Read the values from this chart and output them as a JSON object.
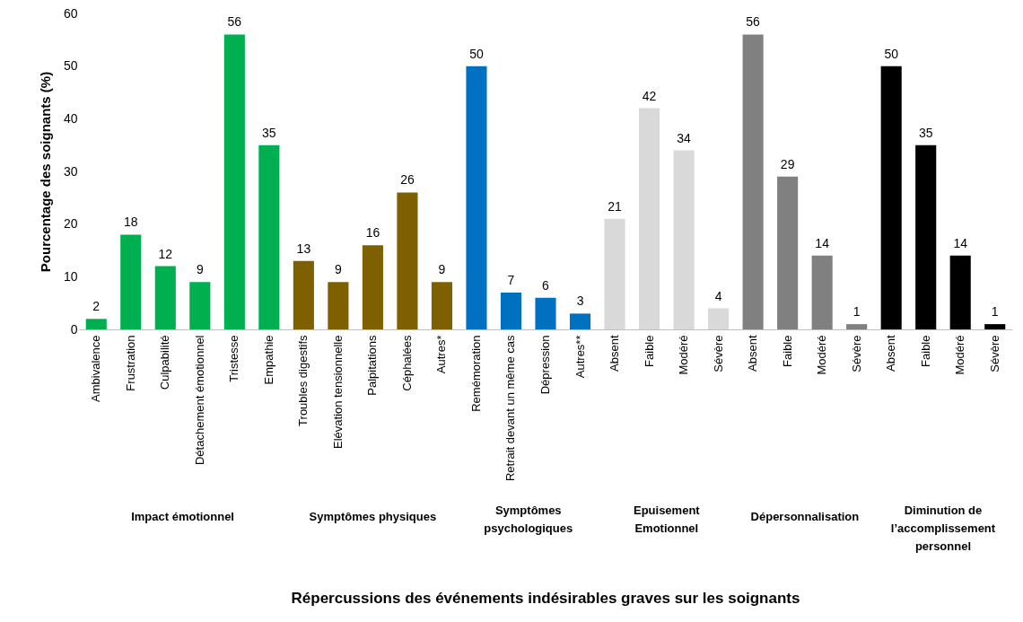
{
  "chart_data": {
    "type": "bar",
    "ylabel": "Pourcentage des soignants (%)",
    "categories": [
      "Ambivalence",
      "Frustration",
      "Culpabilité",
      "Détachement émotionnel",
      "Tristesse",
      "Empathie",
      "Troubles digestifs",
      "Elévation tensionnelle",
      "Palpitations",
      "Céphalées",
      "Autres*",
      "Remémoration",
      "Retrait devant un même cas",
      "Dépression",
      "Autres**",
      "Absent",
      "Faible",
      "Modéré",
      "Sévère",
      "Absent",
      "Faible",
      "Modéré",
      "Sévère",
      "Absent",
      "Faible",
      "Modéré",
      "Sévère"
    ],
    "series": [
      {
        "color": "#00b050",
        "values": [
          2,
          18,
          12,
          9,
          56,
          35,
          null,
          null,
          null,
          null,
          null,
          null,
          null,
          null,
          null,
          null,
          null,
          null,
          null,
          null,
          null,
          null,
          null,
          null,
          null,
          null,
          null
        ]
      },
      {
        "color": "#7f6000",
        "values": [
          null,
          null,
          null,
          null,
          null,
          null,
          13,
          9,
          16,
          26,
          9,
          null,
          null,
          null,
          null,
          null,
          null,
          null,
          null,
          null,
          null,
          null,
          null,
          null,
          null,
          null,
          null
        ]
      },
      {
        "color": "#0070c0",
        "values": [
          null,
          null,
          null,
          null,
          null,
          null,
          null,
          null,
          null,
          null,
          null,
          50,
          7,
          6,
          3,
          null,
          null,
          null,
          null,
          null,
          null,
          null,
          null,
          null,
          null,
          null,
          null
        ]
      },
      {
        "color": "#d9d9d9",
        "values": [
          null,
          null,
          null,
          null,
          null,
          null,
          null,
          null,
          null,
          null,
          null,
          null,
          null,
          null,
          null,
          21,
          42,
          34,
          4,
          null,
          null,
          null,
          null,
          null,
          null,
          null,
          null
        ]
      },
      {
        "color": "#808080",
        "values": [
          null,
          null,
          null,
          null,
          null,
          null,
          null,
          null,
          null,
          null,
          null,
          null,
          null,
          null,
          null,
          null,
          null,
          null,
          null,
          56,
          29,
          14,
          1,
          null,
          null,
          null,
          null
        ]
      },
      {
        "color": "#000000",
        "values": [
          null,
          null,
          null,
          null,
          null,
          null,
          null,
          null,
          null,
          null,
          null,
          null,
          null,
          null,
          null,
          null,
          null,
          null,
          null,
          null,
          null,
          null,
          null,
          50,
          35,
          14,
          1
        ]
      }
    ],
    "ylim": [
      0,
      60
    ],
    "yticks": [
      0,
      10,
      20,
      30,
      40,
      50,
      60
    ],
    "data_labels": true,
    "annotations": [
      "Impact émotionnel",
      "Symptômes physiques",
      "Symptômes psychologiques",
      "Epuisement Emotionnel",
      "Dépersonnalisation",
      "Diminution de l’accomplissement personnel",
      "Répercussions des événements indésirables graves sur les soignants"
    ]
  }
}
